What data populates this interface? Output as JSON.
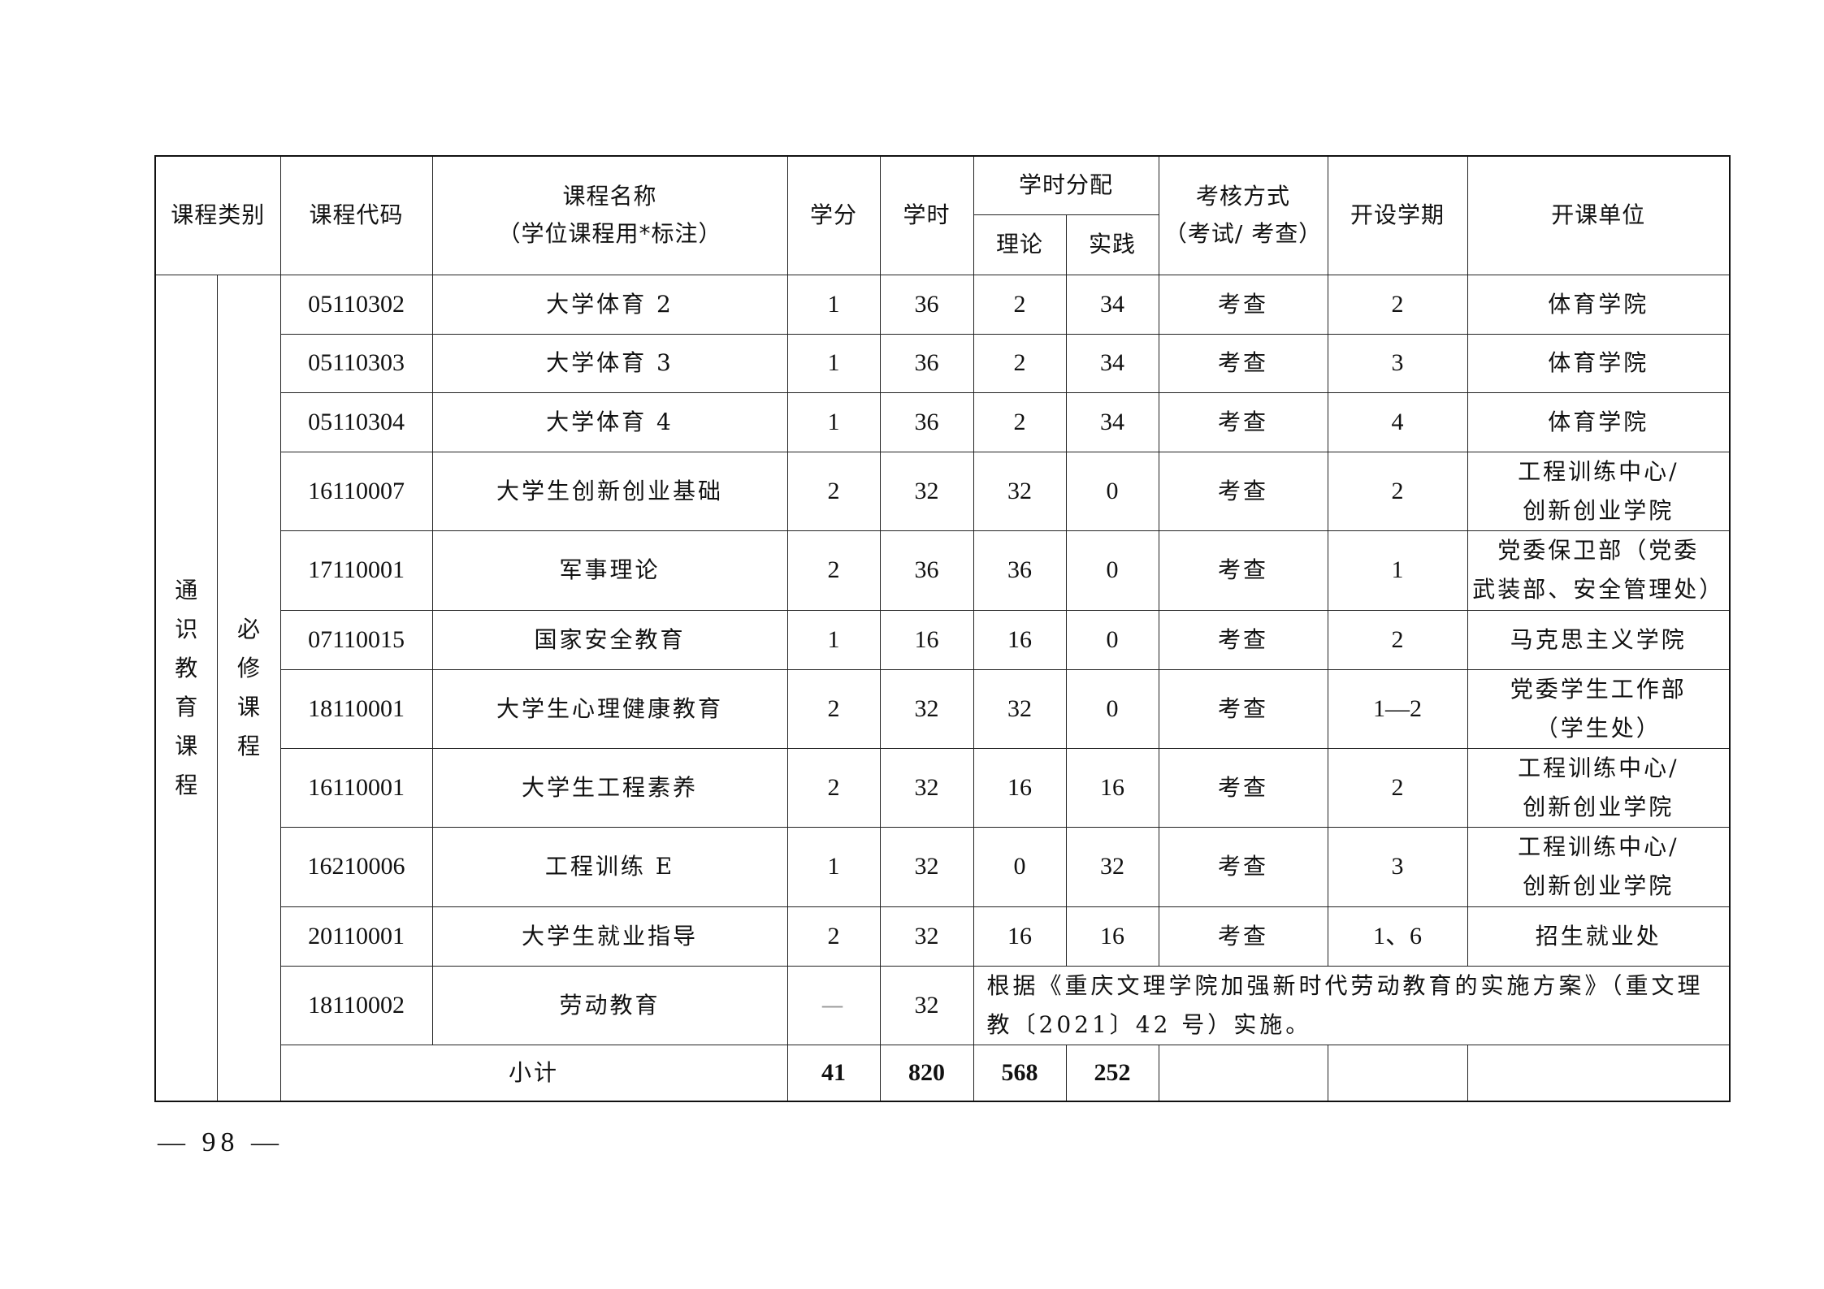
{
  "header": {
    "category": "课程类别",
    "code": "课程代码",
    "name_line1": "课程名称",
    "name_line2": "（学位课程用*标注）",
    "credits": "学分",
    "hours": "学时",
    "hour_split": "学时分配",
    "theory": "理论",
    "practice": "实践",
    "assessment_line1": "考核方式",
    "assessment_line2": "（考试/ 考查）",
    "semester": "开设学期",
    "department": "开课单位"
  },
  "category_main": [
    "通",
    "识",
    "教",
    "育",
    "课",
    "程"
  ],
  "category_sub": [
    "必",
    "修",
    "课",
    "程"
  ],
  "rows": [
    {
      "code": "05110302",
      "name": "大学体育 2",
      "credits": "1",
      "hours": "36",
      "theory": "2",
      "practice": "34",
      "assessment": "考查",
      "semester": "2",
      "dept": [
        "体育学院"
      ]
    },
    {
      "code": "05110303",
      "name": "大学体育 3",
      "credits": "1",
      "hours": "36",
      "theory": "2",
      "practice": "34",
      "assessment": "考查",
      "semester": "3",
      "dept": [
        "体育学院"
      ]
    },
    {
      "code": "05110304",
      "name": "大学体育 4",
      "credits": "1",
      "hours": "36",
      "theory": "2",
      "practice": "34",
      "assessment": "考查",
      "semester": "4",
      "dept": [
        "体育学院"
      ]
    },
    {
      "code": "16110007",
      "name": "大学生创新创业基础",
      "credits": "2",
      "hours": "32",
      "theory": "32",
      "practice": "0",
      "assessment": "考查",
      "semester": "2",
      "dept": [
        "工程训练中心/",
        "创新创业学院"
      ]
    },
    {
      "code": "17110001",
      "name": "军事理论",
      "credits": "2",
      "hours": "36",
      "theory": "36",
      "practice": "0",
      "assessment": "考查",
      "semester": "1",
      "dept": [
        "党委保卫部（党委",
        "武装部、安全管理处）"
      ]
    },
    {
      "code": "07110015",
      "name": "国家安全教育",
      "credits": "1",
      "hours": "16",
      "theory": "16",
      "practice": "0",
      "assessment": "考查",
      "semester": "2",
      "dept": [
        "马克思主义学院"
      ]
    },
    {
      "code": "18110001",
      "name": "大学生心理健康教育",
      "credits": "2",
      "hours": "32",
      "theory": "32",
      "practice": "0",
      "assessment": "考查",
      "semester": "1—2",
      "dept": [
        "党委学生工作部",
        "（学生处）"
      ]
    },
    {
      "code": "16110001",
      "name": "大学生工程素养",
      "credits": "2",
      "hours": "32",
      "theory": "16",
      "practice": "16",
      "assessment": "考查",
      "semester": "2",
      "dept": [
        "工程训练中心/",
        "创新创业学院"
      ]
    },
    {
      "code": "16210006",
      "name": "工程训练 E",
      "credits": "1",
      "hours": "32",
      "theory": "0",
      "practice": "32",
      "assessment": "考查",
      "semester": "3",
      "dept": [
        "工程训练中心/",
        "创新创业学院"
      ]
    },
    {
      "code": "20110001",
      "name": "大学生就业指导",
      "credits": "2",
      "hours": "32",
      "theory": "16",
      "practice": "16",
      "assessment": "考查",
      "semester": "1、6",
      "dept": [
        "招生就业处"
      ]
    }
  ],
  "labor_row": {
    "code": "18110002",
    "name": "劳动教育",
    "credits": "—",
    "hours": "32",
    "note": "根据《重庆文理学院加强新时代劳动教育的实施方案》（重文理教〔2021〕42 号）实施。"
  },
  "subtotal": {
    "label": "小计",
    "credits": "41",
    "hours": "820",
    "theory": "568",
    "practice": "252"
  },
  "page_number": "— 98 —"
}
